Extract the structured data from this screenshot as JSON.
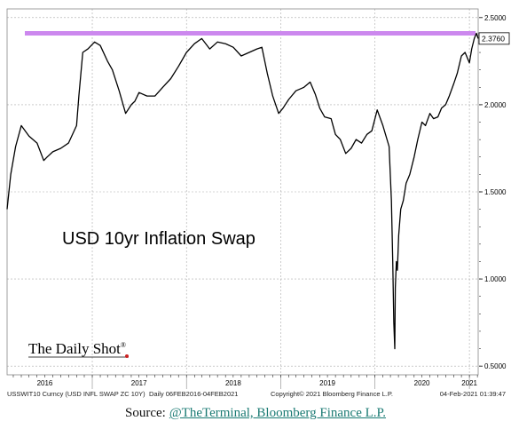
{
  "chart_data": {
    "type": "line",
    "title": "USD 10yr Inflation Swap",
    "ylim": [
      0.45,
      2.55
    ],
    "y_ticks": [
      "2.5000",
      "2.0000",
      "1.5000",
      "1.0000",
      "0.5000"
    ],
    "y_tick_values": [
      2.5,
      2.0,
      1.5,
      1.0,
      0.5
    ],
    "x_tick_labels": [
      "2016",
      "2017",
      "2018",
      "2019",
      "2020",
      "2021"
    ],
    "x_tick_dates": [
      "2016-07-01",
      "2017-07-01",
      "2018-07-01",
      "2019-07-01",
      "2020-07-01",
      "2021-01-01"
    ],
    "xlim": [
      "2016-02-06",
      "2021-02-04"
    ],
    "last_value_label": "2.3760",
    "reference_line": {
      "value": 2.41,
      "color": "#cc88ee"
    },
    "line_color": "#000000",
    "grid": true,
    "series": [
      {
        "x": [
          "2016-02-06",
          "2016-02-20",
          "2016-03-10",
          "2016-04-01",
          "2016-05-01",
          "2016-06-01",
          "2016-06-27",
          "2016-07-10",
          "2016-08-01",
          "2016-09-01",
          "2016-10-01",
          "2016-11-01",
          "2016-11-10",
          "2016-11-25",
          "2016-12-15",
          "2017-01-10",
          "2017-02-01",
          "2017-03-01",
          "2017-03-20",
          "2017-04-15",
          "2017-05-10",
          "2017-06-01",
          "2017-06-15",
          "2017-07-01",
          "2017-08-01",
          "2017-09-01",
          "2017-10-01",
          "2017-11-01",
          "2017-12-01",
          "2018-01-01",
          "2018-02-01",
          "2018-03-01",
          "2018-04-01",
          "2018-05-01",
          "2018-06-01",
          "2018-07-01",
          "2018-08-01",
          "2018-09-01",
          "2018-10-01",
          "2018-10-20",
          "2018-11-10",
          "2018-12-01",
          "2018-12-24",
          "2019-01-10",
          "2019-02-01",
          "2019-03-01",
          "2019-04-01",
          "2019-04-25",
          "2019-05-15",
          "2019-06-01",
          "2019-06-20",
          "2019-07-15",
          "2019-08-01",
          "2019-08-20",
          "2019-09-10",
          "2019-10-01",
          "2019-10-20",
          "2019-11-10",
          "2019-12-01",
          "2019-12-20",
          "2020-01-10",
          "2020-02-01",
          "2020-02-25",
          "2020-03-05",
          "2020-03-10",
          "2020-03-14",
          "2020-03-18",
          "2020-03-20",
          "2020-03-24",
          "2020-03-28",
          "2020-04-02",
          "2020-04-10",
          "2020-04-20",
          "2020-05-01",
          "2020-05-15",
          "2020-06-01",
          "2020-06-15",
          "2020-07-01",
          "2020-07-15",
          "2020-08-01",
          "2020-08-15",
          "2020-09-01",
          "2020-09-15",
          "2020-10-01",
          "2020-10-15",
          "2020-11-01",
          "2020-11-15",
          "2020-12-01",
          "2020-12-15",
          "2021-01-01",
          "2021-01-10",
          "2021-01-20",
          "2021-01-28",
          "2021-02-04"
        ],
        "y": [
          1.4,
          1.6,
          1.76,
          1.88,
          1.82,
          1.78,
          1.68,
          1.7,
          1.73,
          1.75,
          1.78,
          1.88,
          2.05,
          2.3,
          2.32,
          2.36,
          2.34,
          2.25,
          2.2,
          2.08,
          1.95,
          2.0,
          2.02,
          2.07,
          2.05,
          2.05,
          2.1,
          2.15,
          2.22,
          2.3,
          2.35,
          2.38,
          2.32,
          2.36,
          2.35,
          2.33,
          2.28,
          2.3,
          2.32,
          2.33,
          2.18,
          2.05,
          1.95,
          1.98,
          2.03,
          2.08,
          2.1,
          2.13,
          2.06,
          1.98,
          1.93,
          1.92,
          1.83,
          1.8,
          1.72,
          1.75,
          1.8,
          1.78,
          1.83,
          1.85,
          1.97,
          1.88,
          1.76,
          1.45,
          1.1,
          0.75,
          0.6,
          0.95,
          1.1,
          1.05,
          1.25,
          1.4,
          1.45,
          1.55,
          1.6,
          1.7,
          1.8,
          1.9,
          1.88,
          1.95,
          1.92,
          1.93,
          1.98,
          2.0,
          2.05,
          2.12,
          2.18,
          2.28,
          2.3,
          2.24,
          2.32,
          2.38,
          2.41,
          2.38
        ]
      }
    ],
    "footer": {
      "ticker": "USSWIT10 Curncy (USD INFL SWAP ZC 10Y)",
      "range": "Daily 06FEB2016-04FEB2021",
      "copyright": "Copyright© 2021 Bloomberg Finance L.P.",
      "timestamp": "04-Feb-2021 01:39:47"
    },
    "watermark": {
      "text": "The Daily Shot",
      "mark": "®"
    }
  },
  "source": {
    "prefix": "Source:",
    "link_text": "@TheTerminal, Bloomberg Finance L.P."
  }
}
